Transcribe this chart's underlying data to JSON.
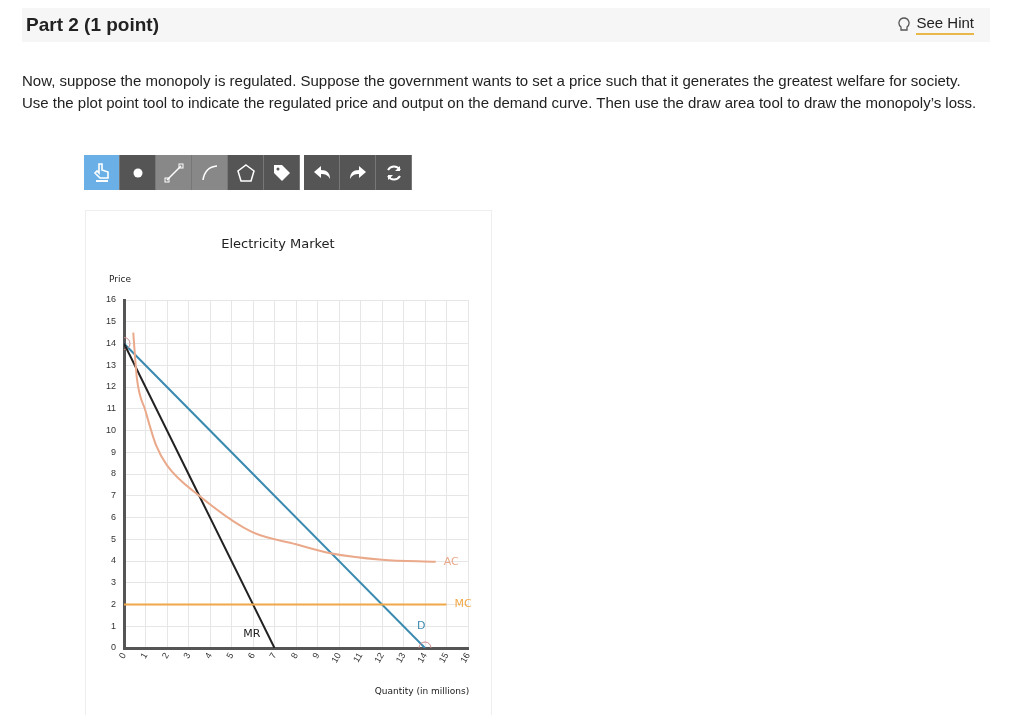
{
  "chart_data": {
    "type": "line",
    "title": "Electricity Market",
    "xlabel": "Quantity (in millions)",
    "ylabel": "Price",
    "xlim": [
      0,
      16
    ],
    "xticks": [
      0,
      1,
      2,
      3,
      4,
      5,
      6,
      7,
      8,
      9,
      10,
      11,
      12,
      13,
      14,
      15,
      16
    ],
    "ylim": [
      0,
      16
    ],
    "yticks": [
      0,
      1,
      2,
      3,
      4,
      5,
      6,
      7,
      8,
      9,
      10,
      11,
      12,
      13,
      14,
      15,
      16
    ],
    "grid": true,
    "legend": false,
    "line_style": "solid",
    "annotations": [
      "Part 2 (1 point)",
      "See Hint",
      "Now, suppose the monopoly is regulated. Suppose the government wants to set a price such that it generates the greatest welfare for society. Use the plot point tool to indicate the regulated price and output on the demand curve. Then use the draw area tool to draw the monopoly’s loss."
    ],
    "series": [
      {
        "name": "AC",
        "color": "#eaa98a",
        "x": [
          0.43,
          0.6,
          1,
          1.5,
          2,
          3.5,
          5.9,
          8,
          9.6,
          12,
          14.5
        ],
        "values": [
          14.5,
          12.4,
          10.9,
          9.3,
          8.4,
          7,
          5.36,
          4.77,
          4.36,
          4.06,
          3.96
        ]
      },
      {
        "name": "MC",
        "color": "#f0a848",
        "x": [
          0,
          15
        ],
        "values": [
          2,
          2
        ]
      },
      {
        "name": "MR",
        "color": "#222222",
        "x": [
          0,
          7
        ],
        "values": [
          14,
          0
        ]
      },
      {
        "name": "D",
        "color": "#3a8ab0",
        "x": [
          0,
          14
        ],
        "values": [
          14,
          0
        ],
        "marker": "circle"
      }
    ]
  }
}
